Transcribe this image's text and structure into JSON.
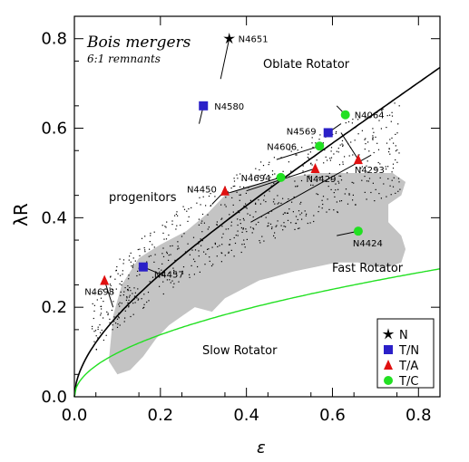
{
  "chart_data": {
    "type": "scatter",
    "title": "Bois mergers",
    "subtitle": "6:1 remnants",
    "xlabel": "ε",
    "ylabel": "λR",
    "xlim": [
      0.0,
      0.85
    ],
    "ylim": [
      0.0,
      0.85
    ],
    "xticks": [
      0.0,
      0.2,
      0.4,
      0.6,
      0.8
    ],
    "xtick_labels": [
      "0.0",
      "0.2",
      "0.4",
      "0.6",
      "0.8"
    ],
    "yticks": [
      0.0,
      0.2,
      0.4,
      0.6,
      0.8
    ],
    "ytick_labels": [
      "0.0",
      "0.2",
      "0.4",
      "0.6",
      "0.8"
    ],
    "region_labels": {
      "oblate": "Oblate Rotator",
      "fast": "Fast Rotator",
      "slow": "Slow Rotator",
      "progenitors": "progenitors"
    },
    "legend": {
      "position": "bottom-right",
      "entries": [
        {
          "symbol": "star",
          "label": "N",
          "color": "#000000"
        },
        {
          "symbol": "square",
          "label": "T/N",
          "color": "#2b20c8"
        },
        {
          "symbol": "triangle",
          "label": "T/A",
          "color": "#e01010"
        },
        {
          "symbol": "circle",
          "label": "T/C",
          "color": "#22e022"
        }
      ]
    },
    "colors": {
      "oblate_curve": "#000000",
      "threshold_curve": "#22e022",
      "fast_region": "#c4c4c4",
      "progenitor_dots": "#000000"
    },
    "galaxies": [
      {
        "name": "N4651",
        "class": "N",
        "x": 0.36,
        "y": 0.8,
        "arrow_to": [
          0.34,
          0.71
        ]
      },
      {
        "name": "N4580",
        "class": "T/N",
        "x": 0.3,
        "y": 0.65,
        "arrow_to": [
          0.29,
          0.61
        ]
      },
      {
        "name": "N4064",
        "class": "T/C",
        "x": 0.63,
        "y": 0.63,
        "arrow_to": [
          0.61,
          0.65
        ]
      },
      {
        "name": "N4569",
        "class": "T/N",
        "x": 0.59,
        "y": 0.59,
        "arrow_to": [
          0.62,
          0.61
        ]
      },
      {
        "name": "N4606",
        "class": "T/C",
        "x": 0.57,
        "y": 0.56,
        "arrow_to": [
          0.47,
          0.53
        ]
      },
      {
        "name": "N4293",
        "class": "T/A",
        "x": 0.66,
        "y": 0.53,
        "arrow_to": [
          0.62,
          0.59
        ]
      },
      {
        "name": "N4429",
        "class": "T/A",
        "x": 0.56,
        "y": 0.51,
        "arrow_to": [
          0.4,
          0.46
        ]
      },
      {
        "name": "N4694",
        "class": "T/C",
        "x": 0.48,
        "y": 0.49,
        "arrow_to": [
          0.34,
          0.45
        ]
      },
      {
        "name": "N4450",
        "class": "T/A",
        "x": 0.35,
        "y": 0.46,
        "arrow_to": [
          0.32,
          0.43
        ]
      },
      {
        "name": "N4424",
        "class": "T/C",
        "x": 0.66,
        "y": 0.37,
        "arrow_to": [
          0.61,
          0.36
        ]
      },
      {
        "name": "N4457",
        "class": "T/N",
        "x": 0.16,
        "y": 0.29,
        "arrow_to": [
          0.21,
          0.27
        ]
      },
      {
        "name": "N4698",
        "class": "T/A",
        "x": 0.07,
        "y": 0.26,
        "arrow_to": [
          0.09,
          0.2
        ]
      }
    ],
    "long_lines": [
      {
        "from": [
          0.69,
          0.54
        ],
        "to": [
          0.41,
          0.39
        ]
      }
    ],
    "fast_rotator_region_outline": [
      [
        0.08,
        0.08
      ],
      [
        0.09,
        0.18
      ],
      [
        0.11,
        0.25
      ],
      [
        0.15,
        0.31
      ],
      [
        0.2,
        0.34
      ],
      [
        0.26,
        0.37
      ],
      [
        0.31,
        0.41
      ],
      [
        0.35,
        0.45
      ],
      [
        0.4,
        0.47
      ],
      [
        0.45,
        0.48
      ],
      [
        0.5,
        0.49
      ],
      [
        0.56,
        0.5
      ],
      [
        0.62,
        0.5
      ],
      [
        0.68,
        0.5
      ],
      [
        0.74,
        0.5
      ],
      [
        0.77,
        0.48
      ],
      [
        0.76,
        0.45
      ],
      [
        0.73,
        0.43
      ],
      [
        0.73,
        0.39
      ],
      [
        0.76,
        0.36
      ],
      [
        0.77,
        0.33
      ],
      [
        0.76,
        0.3
      ],
      [
        0.73,
        0.29
      ],
      [
        0.7,
        0.29
      ],
      [
        0.66,
        0.3
      ],
      [
        0.61,
        0.3
      ],
      [
        0.56,
        0.29
      ],
      [
        0.51,
        0.28
      ],
      [
        0.47,
        0.27
      ],
      [
        0.43,
        0.26
      ],
      [
        0.39,
        0.24
      ],
      [
        0.35,
        0.22
      ],
      [
        0.32,
        0.19
      ],
      [
        0.28,
        0.2
      ],
      [
        0.25,
        0.18
      ],
      [
        0.22,
        0.16
      ],
      [
        0.19,
        0.13
      ],
      [
        0.16,
        0.09
      ],
      [
        0.13,
        0.06
      ],
      [
        0.1,
        0.05
      ]
    ],
    "oblate_curve_label_pos": "top-right",
    "threshold_curve": {
      "description": "lambda = 0.31 * sqrt(eps)"
    },
    "oblate_curve": {
      "description": "edge-on isotropic oblate rotator"
    }
  }
}
